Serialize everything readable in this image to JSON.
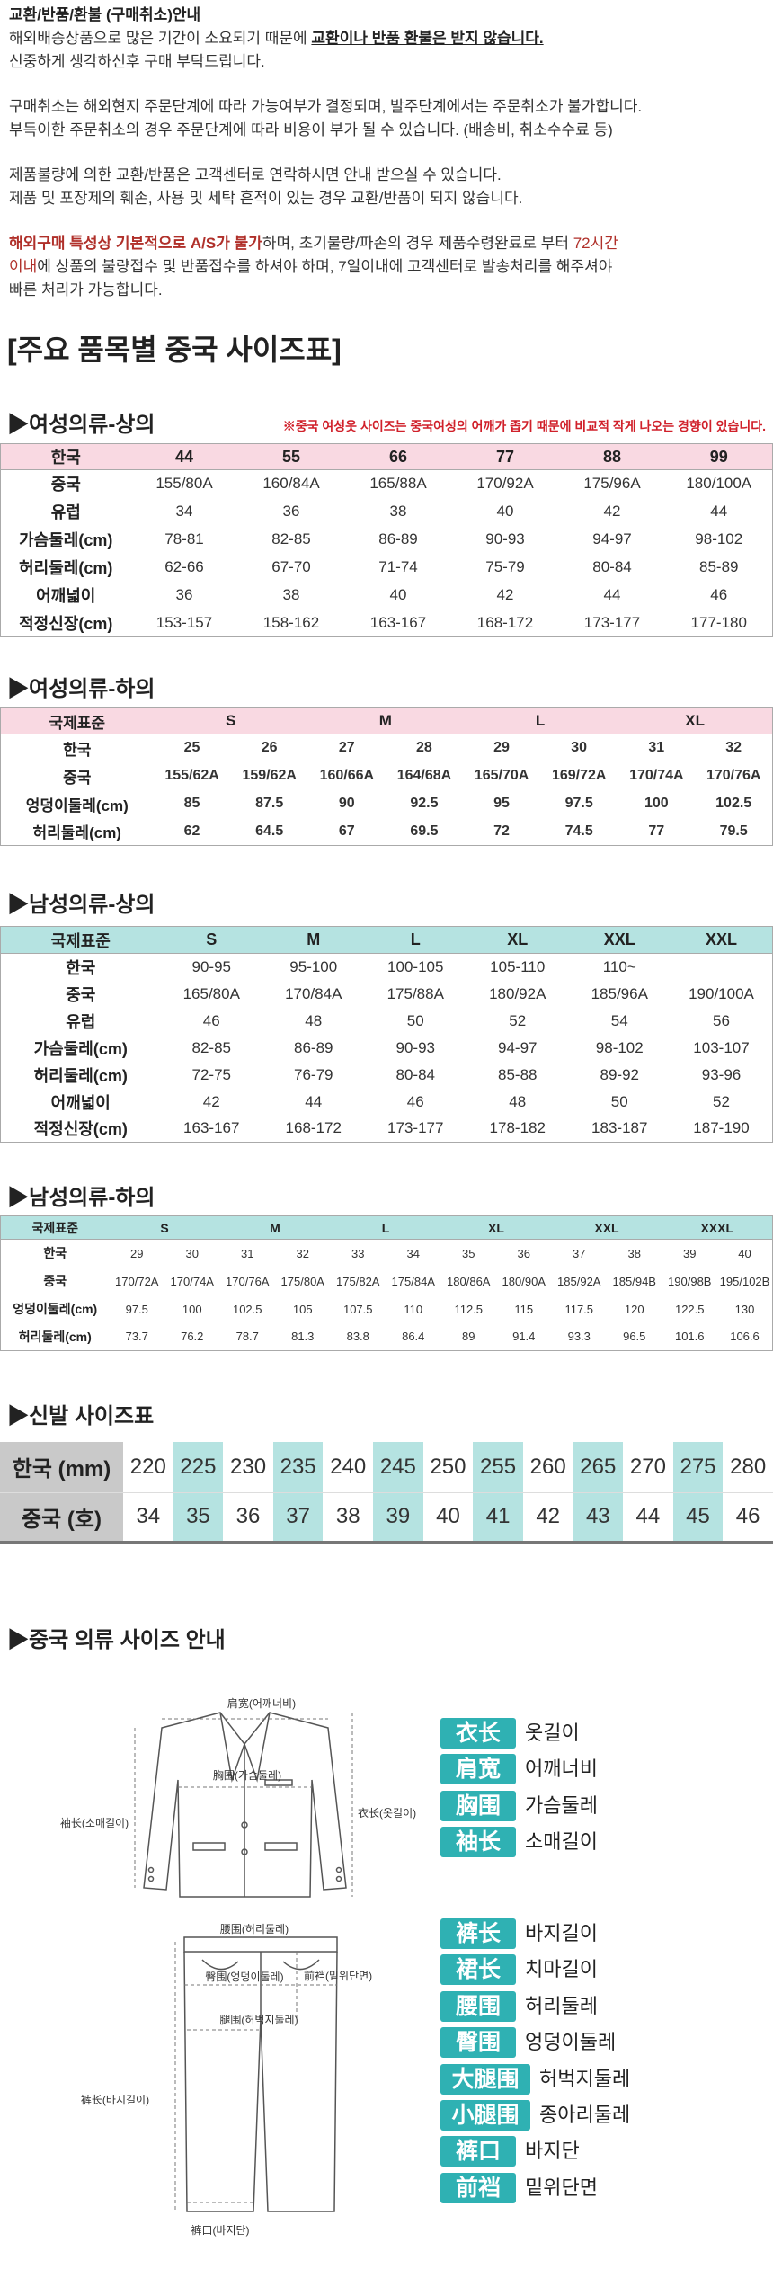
{
  "notice": {
    "paragraphs": [
      [
        [
          {
            "text": "교환/반품/환불 (구매취소)안내",
            "style": "b"
          }
        ],
        [
          {
            "text": "해외배송상품으로 많은 기간이 소요되기 때문에 "
          },
          {
            "text": "교환이나 반품 환불은 받지 않습니다.",
            "style": "bu"
          }
        ],
        [
          {
            "text": "신중하게 생각하신후 구매 부탁드립니다."
          }
        ]
      ],
      [
        [
          {
            "text": "구매취소는 해외현지 주문단계에 따라 가능여부가 결정되며, 발주단계에서는 주문취소가 불가합니다."
          }
        ],
        [
          {
            "text": "부득이한 주문취소의 경우 주문단계에 따라 비용이 부가 될 수 있습니다. (배송비, 취소수수료 등)"
          }
        ]
      ],
      [
        [
          {
            "text": "제품불량에 의한 교환/반품은 고객센터로 연락하시면 안내 받으실 수 있습니다."
          }
        ],
        [
          {
            "text": "제품 및 포장제의 훼손, 사용 및 세탁 흔적이 있는 경우 교환/반품이 되지 않습니다."
          }
        ]
      ],
      [
        [
          {
            "text": "해외구매 특성상 기본적으로 A/S가 불가",
            "style": "rb"
          },
          {
            "text": "하며, 초기불량/파손의 경우 제품수령완료로 부터 "
          },
          {
            "text": "72시간",
            "style": "r"
          }
        ],
        [
          {
            "text": "이내",
            "style": "r"
          },
          {
            "text": "에 상품의 불량접수 및 반품접수를 하셔야 하며, 7일이내에 고객센터로 발송처리를 해주셔야"
          }
        ],
        [
          {
            "text": "빠른 처리가 가능합니다."
          }
        ]
      ]
    ]
  },
  "heading": "[주요 품목별 중국 사이즈표]",
  "tables": [
    {
      "title": "▶여성의류-상의",
      "note": "※중국 여성옷 사이즈는 중국여성의 어깨가 좁기 때문에 비교적 작게 나오는 경향이 있습니다.",
      "header": [
        "한국",
        "44",
        "55",
        "66",
        "77",
        "88",
        "99"
      ],
      "rows": [
        [
          "중국",
          "155/80A",
          "160/84A",
          "165/88A",
          "170/92A",
          "175/96A",
          "180/100A"
        ],
        [
          "유럽",
          "34",
          "36",
          "38",
          "40",
          "42",
          "44"
        ],
        [
          "가슴둘레(cm)",
          "78-81",
          "82-85",
          "86-89",
          "90-93",
          "94-97",
          "98-102"
        ],
        [
          "허리둘레(cm)",
          "62-66",
          "67-70",
          "71-74",
          "75-79",
          "80-84",
          "85-89"
        ],
        [
          "어깨넓이",
          "36",
          "38",
          "40",
          "42",
          "44",
          "46"
        ],
        [
          "적정신장(cm)",
          "153-157",
          "158-162",
          "163-167",
          "168-172",
          "173-177",
          "177-180"
        ]
      ]
    },
    {
      "title": "▶여성의류-하의",
      "header": [
        "국제표준",
        "S",
        "M",
        "L",
        "XL"
      ],
      "rows": [
        [
          "한국",
          "25",
          "26",
          "27",
          "28",
          "29",
          "30",
          "31",
          "32"
        ],
        [
          "중국",
          "155/62A",
          "159/62A",
          "160/66A",
          "164/68A",
          "165/70A",
          "169/72A",
          "170/74A",
          "170/76A"
        ],
        [
          "엉덩이둘레(cm)",
          "85",
          "87.5",
          "90",
          "92.5",
          "95",
          "97.5",
          "100",
          "102.5"
        ],
        [
          "허리둘레(cm)",
          "62",
          "64.5",
          "67",
          "69.5",
          "72",
          "74.5",
          "77",
          "79.5"
        ]
      ]
    },
    {
      "title": "▶남성의류-상의",
      "header": [
        "국제표준",
        "S",
        "M",
        "L",
        "XL",
        "XXL",
        "XXL"
      ],
      "rows": [
        [
          "한국",
          "90-95",
          "95-100",
          "100-105",
          "105-110",
          "110~",
          null
        ],
        [
          "중국",
          "165/80A",
          "170/84A",
          "175/88A",
          "180/92A",
          "185/96A",
          "190/100A"
        ],
        [
          "유럽",
          "46",
          "48",
          "50",
          "52",
          "54",
          "56"
        ],
        [
          "가슴둘레(cm)",
          "82-85",
          "86-89",
          "90-93",
          "94-97",
          "98-102",
          "103-107"
        ],
        [
          "허리둘레(cm)",
          "72-75",
          "76-79",
          "80-84",
          "85-88",
          "89-92",
          "93-96"
        ],
        [
          "어깨넓이",
          "42",
          "44",
          "46",
          "48",
          "50",
          "52"
        ],
        [
          "적정신장(cm)",
          "163-167",
          "168-172",
          "173-177",
          "178-182",
          "183-187",
          "187-190"
        ]
      ]
    },
    {
      "title": "▶남성의류-하의",
      "header": [
        "국제표준",
        "S",
        "M",
        "L",
        "XL",
        "XXL",
        "XXXL"
      ],
      "rows": [
        [
          "한국",
          "29",
          "30",
          "31",
          "32",
          "33",
          "34",
          "35",
          "36",
          "37",
          "38",
          "39",
          "40"
        ],
        [
          "중국",
          "170/72A",
          "170/74A",
          "170/76A",
          "175/80A",
          "175/82A",
          "175/84A",
          "180/86A",
          "180/90A",
          "185/92A",
          "185/94B",
          "190/98B",
          "195/102B"
        ],
        [
          "엉덩이둘레(cm)",
          "97.5",
          "100",
          "102.5",
          "105",
          "107.5",
          "110",
          "112.5",
          "115",
          "117.5",
          "120",
          "122.5",
          "130"
        ],
        [
          "허리둘레(cm)",
          "73.7",
          "76.2",
          "78.7",
          "81.3",
          "83.8",
          "86.4",
          "89",
          "91.4",
          "93.3",
          "96.5",
          "101.6",
          "106.6"
        ]
      ]
    }
  ],
  "shoes": {
    "title": "▶신발 사이즈표",
    "rows": [
      [
        "한국 (mm)",
        "220",
        "225",
        "230",
        "235",
        "240",
        "245",
        "250",
        "255",
        "260",
        "265",
        "270",
        "275",
        "280"
      ],
      [
        "중국 (호)",
        "34",
        "35",
        "36",
        "37",
        "38",
        "39",
        "40",
        "41",
        "42",
        "43",
        "44",
        "45",
        "46"
      ]
    ]
  },
  "guide": {
    "title": "▶중국 의류 사이즈 안내",
    "jacket_labels": [
      "肩宽(어깨너비)",
      "胸围(가슴둘레)",
      "袖长(소매길이)",
      "衣长(옷길이)"
    ],
    "pants_labels": [
      "腰围(허리둘레)",
      "臀围(엉덩이둘레)",
      "前裆(밑위단면)",
      "腿围(허벅지둘레)",
      "裤长(바지길이)",
      "裤口(바지단)"
    ],
    "legend_top": [
      [
        "衣长",
        "옷길이"
      ],
      [
        "肩宽",
        "어깨너비"
      ],
      [
        "胸围",
        "가슴둘레"
      ],
      [
        "袖长",
        "소매길이"
      ]
    ],
    "legend_bottom": [
      [
        "裤长",
        "바지길이"
      ],
      [
        "裙长",
        "치마길이"
      ],
      [
        "腰围",
        "허리둘레"
      ],
      [
        "臀围",
        "엉덩이둘레"
      ],
      [
        "大腿围",
        "허벅지둘레"
      ],
      [
        "小腿围",
        "종아리둘레"
      ],
      [
        "裤口",
        "바지단"
      ],
      [
        "前裆",
        "밑위단면"
      ]
    ]
  }
}
